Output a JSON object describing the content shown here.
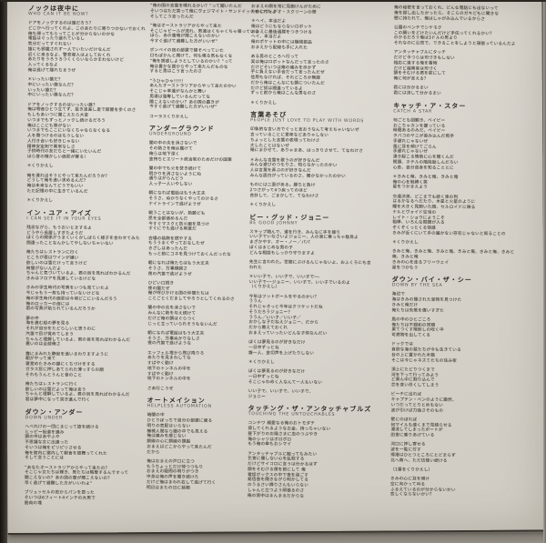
{
  "colors": {
    "paper": "#d8d4cc",
    "ink": "#474439",
    "title_ink": "#2e2b26",
    "scan_edge": "#15120e",
    "scan_background": "#8f8a82"
  },
  "songs": [
    {
      "jp": "ノックは夜中に",
      "en": "WHO CAN IT BE NOW?"
    },
    {
      "jp": "イン・ユア・アイズ",
      "en": "I CAN SEE IT IN YOUR EYES"
    },
    {
      "jp": "ダウン・アンダー",
      "en": "DOWN UNDER"
    },
    {
      "jp": "アンダーグラウンド",
      "en": "UNDERGROUND"
    },
    {
      "jp": "オートメイション",
      "en": "HELPLESS AUTOMATION"
    },
    {
      "jp": "言葉あそび",
      "en": "PEOPLE JUST LOVE TO PLAY WITH WORDS"
    },
    {
      "jp": "ビー・グッド・ジョニー",
      "en": "BE GOOD JOHNNY"
    },
    {
      "jp": "タッチング・ザ・アンタッチャブルズ",
      "en": "TOUCHING THE UNTOUCHABLES"
    },
    {
      "jp": "キャッチ・ア・スター",
      "en": "CATCH A STAR"
    },
    {
      "jp": "ダウン・バイ・ザ・シー",
      "en": "DOWN BY THE SEA"
    }
  ],
  "columns": [
    {
      "blocks": [
        {
          "t": "h",
          "jp": "ノックは夜中に",
          "en": "WHO CAN IT BE NOW?"
        },
        {
          "t": "p",
          "lines": [
            "ドアをノックするのは誰だろう？",
            "どこかへ行ってくれよ、このあたりに寄りつかないでおくれ",
            "俺も帰ってもらってことが分からないのかな",
            "電話はぐったり疲れているし",
            "気分だってすぐれない",
            "誰にも邪魔されず一人でいたいだけなんだ",
            "近くに来るなよ、警官導入はよしておくれ",
            "あたりをうろうろつくくらいならかまわないけど",
            "入ってくるなよ",
            "俺は逃げて隠れちまうぜ"
          ]
        },
        {
          "t": "p",
          "lines": [
            "＊いったい誰だ？",
            "中にいったい誰なんだ？",
            "いったい誰だ？",
            "中にいったい誰なんだ？"
          ]
        },
        {
          "t": "p",
          "lines": [
            "ドアをノックするのはいったい誰？",
            "俺は物音ひとつ立てず、抜き足差し足で部屋を歩くのさ",
            "もしもあいつに聞こえたら大変",
            "いつまでもずっとノックし続けるだろう",
            "俺はここにも隙がない",
            "いつまでもここにいなくちゃならなくなる",
            "人を傷つけるのはもうしない",
            "人付き合いも好きじゃない",
            "精神安定剤で異常なしさ",
            "子供時代の友だちと一緒にいたいんだ",
            "ほら昔の懐かしい面影が蘇る！"
          ]
        },
        {
          "t": "p",
          "lines": [
            "＊くりかえし"
          ]
        },
        {
          "t": "p",
          "lines": [
            "俺を連れ出そうとやって来たんだろうか？",
            "どうして俺を追い求めるんだ？",
            "俺は未来なんてどうでもいい",
            "ただ記憶の中に生きているんだ"
          ]
        },
        {
          "t": "p",
          "lines": [
            "＊くりかえし"
          ]
        },
        {
          "t": "h",
          "jp": "イン・ユア・アイズ",
          "en": "I CAN SEE IT IN YOUR EYES"
        },
        {
          "t": "p",
          "lines": [
            "残念ながら、もうおいとまするよ",
            "どうやら長居しすぎたようだ",
            "ぼくらの関係がうまくいくかしばらく様子を合わせてみた",
            "間違ったことなんかしてやしないちゃいない"
          ]
        },
        {
          "t": "p",
          "lines": [
            "俺たちはレストランに行く",
            "ところが君はワインが嫌い",
            "欲しいのは雪だけって言うけど",
            "時間がないんだよ",
            "ちゃんと気づいているよ、君の目を見ればわかるんだ",
            "きみはフロアを見渡しているけどな"
          ]
        },
        {
          "t": "p",
          "lines": [
            "きみの学生時代の写真をいつも見ていたよ",
            "今じゃもう一枚も持っていないけどな",
            "俺の学生時代の面影は今頃どこにいるんだろう",
            "俺のロッカーの扉には",
            "君の写真が貼られているんだろうか"
          ]
        },
        {
          "t": "p",
          "lines": [
            "夢の中",
            "海を進む船の夢を見る",
            "それが自分をたどらしいと思うのに",
            "汽笛で目が覚めてしまう",
            "ちゃんと理解しているよ、君の目を見ればわかるんだ",
            "悪いのは全部俺さ"
          ]
        },
        {
          "t": "p",
          "lines": [
            "靄にまみれた静寂を追いまわりますように",
            "朝がやって来て",
            "寝覚めたきみの額にくちづけをする",
            "ガラス窓に押しあてられた薄っすらの顔",
            "それもうんとうんと昔のこと"
          ]
        },
        {
          "t": "p",
          "lines": [
            "俺たちはレストランに行く",
            "欲しいのは雪だよって俺は言う",
            "ちゃんと理解しているよ、君の目を見ればわかるんだ",
            "君は夢中になって突き進んで行く"
          ]
        },
        {
          "t": "h",
          "jp": "ダウン・アンダー",
          "en": "DOWN UNDER"
        },
        {
          "t": "p",
          "lines": [
            "へべれけの一団にまじって旅を続ける",
            "ヒッピー街道を進み",
            "頭の中はあやふや",
            "不思議な女に出違った",
            "そいつは俺をピリピリさせる",
            "俺を館内に案内して朝食を振舞ってくれた",
            "そして言うことには"
          ]
        },
        {
          "t": "p",
          "lines": [
            "“あなたオーストラリアからやって来たの？",
            "そこじゃ女たちは輝き、男たちは略奪するんですって",
            "聞こえないの？あの国の雷が聞こえないの？",
            "早く逃げて避難した方がいいわよ”"
          ]
        },
        {
          "t": "p",
          "lines": [
            "ブリュッセルの窓からパンを買った",
            "そいつは6フィート4インチの大男で",
            "筋肉の塊"
          ]
        }
      ]
    },
    {
      "blocks": [
        {
          "t": "p",
          "lines": [
            "“俺の国の言葉を喋れるかい？”って聞いたんだ",
            "そいつはただ笑って俺にヴェジマイト・サンドイッチをくれたよ",
            "そしてこう言ったんだ"
          ]
        },
        {
          "t": "p",
          "lines": [
            "“俺はオーストラリアからやって来た",
            "そこじゃビールが流れ、男達はくちゃくちゃ喋っている",
            "ほら、あの雷鳴が聞こえないのかい",
            "今すぐ逃げて避難した方がいいぜ”"
          ]
        },
        {
          "t": "p",
          "lines": [
            "ボンベイの宿の部屋で寝そべっていた",
            "口もぽかんと開けて、何も喋る気もなくな",
            "“俺を誘惑しようとしているのかい？”って",
            "俺は豊かな国からやって来たんだものな",
            "すると男はこう言ったのさ"
          ]
        },
        {
          "t": "p",
          "lines": [
            "“うひゃひゃ!!!!!",
            "あんたオーストラリアからやって来たのかい",
            "そこじゃ幸運がなんかと舞い",
            "男達は強奪しているんだってな",
            "聞こえないのかい？あの国の轟きが",
            "今すぐ逃げて避難した方がいいぜ”"
          ]
        },
        {
          "t": "p",
          "lines": [
            "コーラスくりかえし"
          ]
        },
        {
          "t": "h",
          "jp": "アンダーグラウンド",
          "en": "UNDERGROUND"
        },
        {
          "t": "p",
          "lines": [
            "闇の中の炎を消さないで",
            "その熱さを俺は届けて",
            "俺らは地下深く",
            "金持ちとエリート政治家のためだけの国策"
          ]
        },
        {
          "t": "p",
          "lines": [
            "闇の中でも火を焚き続けて",
            "明かりを消さないようにね",
            "通りはがらんどう",
            "人っ子一人いやしない"
          ]
        },
        {
          "t": "p",
          "lines": [
            "朝になれば電話はもう大丈夫",
            "そうさ、ぬかりなくやってのけるさ",
            "ナイトラインで逃げようぜ"
          ]
        },
        {
          "t": "p",
          "lines": [
            "戦うことはないが、熱願ども",
            "民を全部追めるんだ",
            "今すぐマスクと防火服を見つけ",
            "すぐにでも逃げる用意だ"
          ]
        },
        {
          "t": "p",
          "lines": [
            "会場の装飾を燃やする",
            "もううまくやっておなしたぜ",
            "きざしはあったんだ",
            "もっと前にコネを見つけておくんだったな"
          ]
        },
        {
          "t": "p",
          "lines": [
            "朝になれば俺たちはもう大丈夫",
            "そうさ、万事順調さ",
            "夜の汽笛で逃げようぜ"
          ]
        },
        {
          "t": "p",
          "lines": [
            "ひどい口説き",
            "夜の闇だぜ",
            "俺が呼びかける国の仲間たちは",
            "ことごとくだましてやろうとしてくれるのさ"
          ]
        },
        {
          "t": "p",
          "lines": [
            "闇の中の炎を消さないで",
            "みんなに熱を与え続けて",
            "だけど俺の頭はぐらつく",
            "じっと立っていられそうもないんだ"
          ]
        },
        {
          "t": "p",
          "lines": [
            "朝になれば電話はもう大丈夫",
            "そうさ、万事ぬかりなしさ",
            "夜の汽笛で逃げような"
          ]
        },
        {
          "t": "p",
          "lines": [
            "エッフェル塔から飛び降りろ",
            "あたりを見まわしてな",
            "すばやく動け",
            "地下のトンネルの中を",
            "すばやく動け",
            "地下のトンネルの中を"
          ]
        },
        {
          "t": "p",
          "lines": [
            "さあ行こうぜ"
          ]
        },
        {
          "t": "h",
          "jp": "オートメイション",
          "en": "HELPLESS AUTOMATION"
        },
        {
          "t": "p",
          "lines": [
            "暗闇の中",
            "ひとりぼっちで自分の部屋に居る",
            "明りの気配はいらない",
            "機械人間なら闇の中でも見える",
            "俺は痛みを感じない",
            "銅線の心に銅線の頭脳",
            "おまえはどこからやって来たんだ",
            "だから"
          ]
        },
        {
          "t": "p",
          "lines": [
            "俺はおまえの戸口に立つ",
            "もうちょっとだけ待つつもり",
            "おまえの疑問の明りがつき",
            "中身は俺の声を聞き続けた",
            "だけど俺はまわれ右して逃げて行く",
            "明日はまたの日に延期"
          ]
        }
      ]
    },
    {
      "blocks": [
        {
          "t": "p",
          "lines": [
            "おまえの顔を常に見飽けんがために",
            "ためにヴィデオ・スクリーンの壁"
          ]
        },
        {
          "t": "p",
          "lines": [
            "＊ヘイ、本当だよ",
            "俺はどうにもならないロボット",
            "おまえに最後通牒をつきつける",
            "ヘイ、本当だよ",
            "俺のポケットの中には機械部品",
            "おまえから配線も手に入れた"
          ]
        },
        {
          "t": "p",
          "lines": [
            "ある男のところへ行って",
            "実は俺はロボットなんだって言ったのさ",
            "だけどそいつは俺の痛みを示かず",
            "手に負えない手合だって言ったんだぜ",
            "信用もなければ、それどころか無謀",
            "だから俺はこんなにも頭についたんだ",
            "だけど奴は間違っているよ",
            "ずっと前から俺はこんな男なのさ"
          ]
        },
        {
          "t": "p",
          "lines": [
            "＊くりかえし"
          ]
        },
        {
          "t": "h",
          "jp": "言葉あそび",
          "en": "PEOPLE JUST LOVE TO PLAY WITH WORDS"
        },
        {
          "t": "p",
          "lines": [
            "印象的な言い方でぐっと言おうなんて考えちゃいないぜ",
            "言っていることに意味などありゃしない",
            "ちょっとした言葉の表現ってわけさ",
            "大したことはないぜ",
            "俺にまかせて、ありゃまあ、はっきりさせて、てなわけさ"
          ]
        },
        {
          "t": "p",
          "lines": [
            "＊みんな言葉を歌うのが好きなんだ",
            "みんな遊びのつもりさ、知らなかったのかい",
            "人は言葉を弄ぶのが好きなんだ",
            "みんな面白がっているのさ、聞かなかったのかい"
          ]
        },
        {
          "t": "p",
          "lines": [
            "ものには二面がある。勝ちと負け",
            "2つさがって4つ戻ってのほど",
            "合計して、ごまかして、てなわけさ"
          ]
        },
        {
          "t": "p",
          "lines": [
            "＊くりかえし"
          ]
        },
        {
          "t": "h",
          "jp": "ビー・グッド・ジョニー",
          "en": "BE GOOD JOHNNY"
        },
        {
          "t": "p",
          "lines": [
            "スキップ踏んで、道を行き、みんなに手を振り",
            "いい子でいなさいよジョニー、人の車に乗っちゃ駄目よ",
            "まざかやす、オー・ノー／パパ",
            "ぼくはまじめな男の子",
            "どんな相談もしっかり守りますよ"
          ]
        },
        {
          "t": "p",
          "lines": [
            "先生に言われた。世間にぶけるんじゃないよ、おふくろにも言",
            "われた"
          ]
        },
        {
          "t": "p",
          "lines": [
            "＊いい子で、いい子で、いい子で──",
            "いい子で──ジョニー、いい子で、いい子でいるのよ",
            "（くりかえし）"
          ]
        },
        {
          "t": "p",
          "lines": [
            "今年はフットボールをやるのかい？",
            "ううん",
            "それじゃきっと今年はクリケットだね",
            "そうだろうジョニー？",
            "ううん／いい子／いい子／",
            "おかしな子だねえジョニー、だから",
            "だから教えておくれ",
            "おまえっていったいどんな子供なんだい"
          ]
        },
        {
          "t": "p",
          "lines": [
            "ぼくは夢見るのが好きなだけ",
            "一日中ずっとね",
            "誰一人、金切声を上げたりしない"
          ]
        },
        {
          "t": "p",
          "lines": [
            "＊くりかえし"
          ]
        },
        {
          "t": "p",
          "lines": [
            "ぼくは夢見るのが好きなだけ",
            "一日中ずっとね",
            "そこじゃわめく人なんて一人もいない"
          ]
        },
        {
          "t": "p",
          "lines": [
            "いい子で、いい子で、いい子で、",
            "ジョニー"
          ]
        },
        {
          "t": "h",
          "jp": "タッチング・ザ・アンタッチャブルズ",
          "en": "TOUCHING THE UNTOUCHABLES"
        },
        {
          "t": "p",
          "lines": [
            "コンチワ 親愛なる俺のおトモダチ",
            "貸してくれるようなお金、持っちゃいない",
            "昼下がりのお陽さまに虫のつぶやき",
            "俺のシャツはボロボロ",
            "もう俺の傘もおシマイ"
          ]
        },
        {
          "t": "p",
          "lines": [
            "アンタッチャブルに触ってもみたい",
            "乞食に優しない心を乱取する",
            "だけどサイコロに言うは分かるはず",
            "顔をそむける僕を前にして 俺",
            "電話ボックスの中で夜を過ごす",
            "発信音を聞きながら明かしてる",
            "のうるさい隣りさんもいらない",
            "しゃんと立つよう頑張るのさ",
            "俺の背中はまんまるだからな"
          ]
        }
      ]
    },
    {
      "blocks": [
        {
          "t": "p",
          "lines": [
            "俺の秘密を言っておくれ、どんな電話にも出ないって",
            "俺を探し出したかったら、そこらのガキどもに聞きな",
            "壁に持たれて、俺はしゃがみ込んでいるからさ"
          ]
        },
        {
          "t": "p",
          "lines": [
            "公園のベンチでシケモク",
            "この願いをどけたいんだけど手伝ってくれるかい？",
            "のかるだろう俺は3ドルの男より",
            "それなのに公然で、できることをしようと頑張っているんだよ"
          ]
        },
        {
          "t": "p",
          "lines": [
            "アンタッチャブルにタッチ",
            "だけど今つらは司づきもしない",
            "相応に達する俺を着物",
            "だけど越南省は司づく",
            "頭をそむける君を前にして",
            "俺に何が言える？"
          ]
        },
        {
          "t": "p",
          "lines": [
            "君には分かるまい",
            "君には決して分かるまい"
          ]
        },
        {
          "t": "h",
          "jp": "キャッチ・ア・スター",
          "en": "CATCH A STAR"
        },
        {
          "t": "p",
          "lines": [
            "何ごとも回観き、ベイビー",
            "おこちゃカンを握っている",
            "時間あるのみだ、ベイビー",
            "タバコのヤニが染み込んだ両手",
            "手遅れじゃないぜ",
            "風に耳を傾けてごらん",
            "手遅れじゃないぜ",
            "湧き起こる情熱に心を開くんだ",
            "問題、ホテルの階段勘しんだろい",
            "心息、自分自身を知ることとに"
          ]
        },
        {
          "t": "p",
          "lines": [
            "＊きみと俺、きみと俺、きみと俺",
            "俺の心を制縛く笑",
            "星をつかまえよう"
          ]
        },
        {
          "t": "p",
          "lines": [
            "交通渋滞、どこまでも続く車の列",
            "はるかなるへだたり、木星と火星のように",
            "瞳を大きく見開いた顔、セルロイドに映る",
            "ナルとヴォイド空当の",
            "レイト・ショウにようこそ",
            "相棒、いろんな問題が入る",
            "ぞくぞくっとくる快感",
            "きみが近くにいて手の届かない存在じゃないと知ることの"
          ]
        },
        {
          "t": "p",
          "lines": [
            "＊くりかえし"
          ]
        },
        {
          "t": "p",
          "lines": [
            "きみと俺、きみと俺、きみと俺、きみと俺、きみと俺、きみと",
            "俺、きみと俺",
            "きみの心を走るフリーウェイ",
            "星をつかもう"
          ]
        },
        {
          "t": "h",
          "jp": "ダウン・バイ・ザ・シー",
          "en": "DOWN BY THE SEA"
        },
        {
          "t": "p",
          "lines": [
            "海辺で",
            "海はきみの隠された宝物を見つけた",
            "きみと俺だけ",
            "俺たちは失敗を償いすぎた"
          ]
        },
        {
          "t": "p",
          "lines": [
            "風の中のひとごころ",
            "俺たちは不調和の同類",
            "果てつくす陽射しの吹く中",
            "可燃物を出してくる"
          ]
        },
        {
          "t": "p",
          "lines": [
            "ドックでは",
            "貪欲な海の鼠たちが今も生きている",
            "台の上に置かれた木箱",
            "そこは今じゃネズミたちの住み家"
          ]
        },
        {
          "t": "p",
          "lines": [
            "頂上にたどりつくまで",
            "河を下って行ってみよう",
            "ど真ん中に割り込んで",
            "芯を食い尽くしてしまう"
          ]
        },
        {
          "t": "p",
          "lines": [
            "ビーチに出れば",
            "キャプテン・ベンのように厳然、",
            "いつだってとりとめもない",
            "波が引けば力強さそのもの"
          ]
        },
        {
          "t": "p",
          "lines": [
            "壁にのぼれば",
            "何マイルも遠くまで見晴らせる",
            "漂流してしまったボートが",
            "田舎に乗りあげている"
          ]
        },
        {
          "t": "p",
          "lines": [
            "河口に押し寄せる",
            "波を一覧に付す",
            "帰港はひとつところにとどまらず",
            "北へ南へ、ただ彷徨い続ける"
          ]
        },
        {
          "t": "p",
          "lines": [
            "（1番をくりかえし）"
          ]
        },
        {
          "t": "p",
          "lines": [
            "きみの心に耳を傾け",
            "空に向かって叫る",
            "ふるえているのが分からないかい",
            "恋しくならないかい？"
          ]
        }
      ]
    }
  ]
}
